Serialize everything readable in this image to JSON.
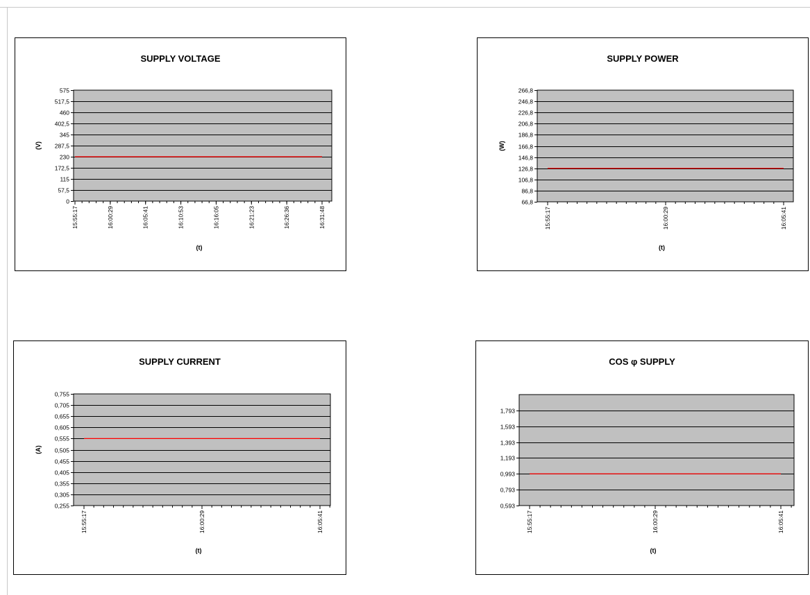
{
  "chart_data": [
    {
      "type": "line",
      "title": "SUPPLY VOLTAGE",
      "ylabel": "(V)",
      "xlabel": "(t)",
      "ylim": [
        0,
        575
      ],
      "yticks": [
        "0",
        "57,5",
        "115",
        "172,5",
        "230",
        "287,5",
        "345",
        "402,5",
        "460",
        "517,5",
        "575"
      ],
      "xticks": [
        "15:55:17",
        "16:00:29",
        "16:05:41",
        "16:10:53",
        "16:16:05",
        "16:21:23",
        "16:26:36",
        "16:31:48"
      ],
      "series": [
        {
          "values": [
            230,
            230
          ]
        }
      ],
      "color": "#ff0000",
      "grid": true
    },
    {
      "type": "line",
      "title": "SUPPLY POWER",
      "ylabel": "(W)",
      "xlabel": "(t)",
      "ylim": [
        66.8,
        266.8
      ],
      "yticks": [
        "66,8",
        "86,8",
        "106,8",
        "126,8",
        "146,8",
        "166,8",
        "186,8",
        "206,8",
        "226,8",
        "246,8",
        "266,8"
      ],
      "xticks": [
        "15:55:17",
        "16:00:29",
        "16:05:41"
      ],
      "series": [
        {
          "values": [
            126.8,
            126.8
          ]
        }
      ],
      "color": "#ff0000",
      "grid": true
    },
    {
      "type": "line",
      "title": "SUPPLY CURRENT",
      "ylabel": "(A)",
      "xlabel": "(t)",
      "ylim": [
        0.255,
        0.755
      ],
      "yticks": [
        "0,255",
        "0,305",
        "0,355",
        "0,405",
        "0,455",
        "0,505",
        "0,555",
        "0,605",
        "0,655",
        "0,705",
        "0,755"
      ],
      "xticks": [
        "15:55:17",
        "16:00:29",
        "16:05:41"
      ],
      "series": [
        {
          "values": [
            0.555,
            0.555
          ]
        }
      ],
      "color": "#ff0000",
      "grid": true
    },
    {
      "type": "line",
      "title": "COS φ SUPPLY",
      "ylabel": "",
      "xlabel": "(t)",
      "ylim": [
        0.593,
        1.993
      ],
      "yticks": [
        "0,593",
        "0,793",
        "0,993",
        "1,193",
        "1,393",
        "1,593",
        "1,793"
      ],
      "xticks": [
        "15:55:17",
        "16:00:29",
        "16:05:41"
      ],
      "series": [
        {
          "values": [
            0.993,
            0.993
          ]
        }
      ],
      "color": "#ff0000",
      "grid": true
    }
  ],
  "colors": {
    "plot_bg": "#c0c0c0",
    "grid": "#000000",
    "line": "#ff0000"
  }
}
